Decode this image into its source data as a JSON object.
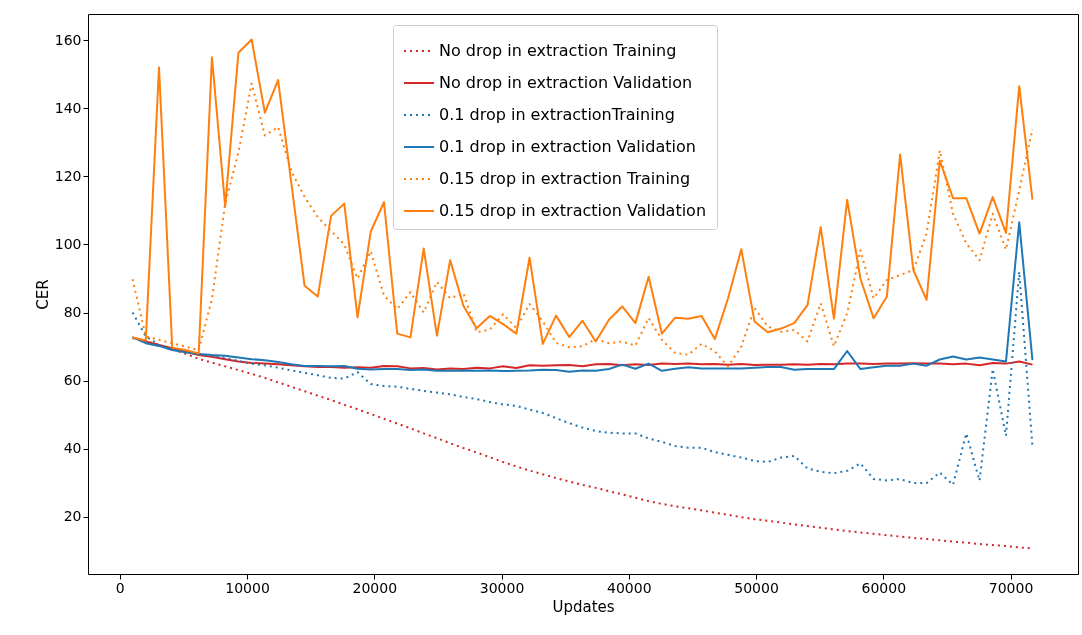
{
  "chart_data": {
    "type": "line",
    "xlabel": "Updates",
    "ylabel": "CER",
    "x": [
      1000,
      2040,
      3080,
      4120,
      5160,
      6200,
      7240,
      8280,
      9320,
      10360,
      11400,
      12440,
      13480,
      14520,
      15560,
      16600,
      17640,
      18680,
      19720,
      20760,
      21800,
      22840,
      23880,
      24920,
      25960,
      27000,
      28040,
      29080,
      30120,
      31160,
      32200,
      33240,
      34280,
      35320,
      36360,
      37400,
      38440,
      39480,
      40520,
      41560,
      42600,
      43640,
      44680,
      45720,
      46760,
      47800,
      48840,
      49880,
      50920,
      51960,
      53000,
      54040,
      55080,
      56120,
      57160,
      58200,
      59240,
      60280,
      61320,
      62360,
      63400,
      64440,
      65480,
      66520,
      67560,
      68600,
      69640,
      70680,
      71720
    ],
    "series": [
      {
        "name": "No drop in extraction Training",
        "color": "#d62728",
        "line_style": "dotted",
        "values": [
          72.5,
          71.6,
          70.5,
          69.2,
          67.9,
          66.4,
          65.3,
          64.2,
          63.1,
          62,
          60.8,
          59.5,
          58.2,
          56.9,
          55.6,
          54.3,
          52.9,
          51.6,
          50.2,
          48.8,
          47.4,
          46.0,
          44.5,
          43.1,
          41.6,
          40.2,
          38.9,
          37.5,
          36.1,
          34.8,
          33.6,
          32.5,
          31.4,
          30.4,
          29.4,
          28.5,
          27.5,
          26.6,
          25.6,
          24.6,
          23.8,
          23.1,
          22.5,
          21.9,
          21.2,
          20.6,
          19.9,
          19.3,
          18.8,
          18.3,
          17.8,
          17.3,
          16.8,
          16.3,
          15.8,
          15.4,
          15.0,
          14.6,
          14.2,
          13.8,
          13.5,
          13.1,
          12.7,
          12.4,
          12.0,
          11.7,
          11.4,
          11.0,
          10.7
        ]
      },
      {
        "name": "No drop in extraction Validation",
        "color": "#d62728",
        "line_style": "solid",
        "values": [
          72.7,
          71.5,
          70.5,
          69.5,
          68.5,
          67.5,
          67,
          66.3,
          65.6,
          65.2,
          65,
          64.8,
          64.5,
          64.2,
          64,
          64,
          63.8,
          63.9,
          63.8,
          64.3,
          64.2,
          63.6,
          63.7,
          63.3,
          63.6,
          63.4,
          63.8,
          63.6,
          64.2,
          63.7,
          64.5,
          64.4,
          64.5,
          64.6,
          64.2,
          64.8,
          64.9,
          64.5,
          64.8,
          64.6,
          65,
          64.9,
          65,
          64.8,
          64.9,
          64.7,
          64.9,
          64.6,
          64.7,
          64.7,
          64.8,
          64.7,
          64.9,
          64.8,
          65,
          65,
          64.9,
          65,
          65,
          65.1,
          65,
          65,
          64.8,
          65,
          64.5,
          65.2,
          65,
          65.6,
          64.7
        ]
      },
      {
        "name": "0.1 drop in extractionTraining",
        "color": "#1f77b4",
        "line_style": "dotted",
        "values": [
          80,
          73,
          70.5,
          69.2,
          68.5,
          67.8,
          67.3,
          66.7,
          65.8,
          65,
          64.5,
          63.8,
          63,
          62.3,
          61.6,
          60.8,
          60.6,
          62.5,
          59,
          58.4,
          58.2,
          57.6,
          57,
          56.5,
          56,
          55.2,
          54.6,
          53.7,
          53,
          52.6,
          51.5,
          50.5,
          49,
          47.5,
          46.2,
          45.2,
          44.7,
          44.5,
          44.5,
          43,
          42,
          40.8,
          40.3,
          40.3,
          39,
          38.2,
          37.4,
          36.4,
          36.1,
          37.4,
          37.9,
          34.2,
          33.2,
          32.8,
          33.5,
          35.7,
          31.1,
          30.7,
          31.1,
          29.9,
          29.9,
          33,
          29.4,
          44.5,
          30.6,
          63.4,
          43.8,
          92,
          40.6
        ]
      },
      {
        "name": "0.1 drop in extraction  Validation",
        "color": "#1f77b4",
        "line_style": "solid",
        "values": [
          72.7,
          71,
          70.2,
          69,
          68.3,
          67.8,
          67.5,
          67.3,
          66.8,
          66.3,
          66,
          65.5,
          64.8,
          64.3,
          64.3,
          64.2,
          64.3,
          63.5,
          63.3,
          63.4,
          63.4,
          63.1,
          63.3,
          62.9,
          62.9,
          63,
          62.9,
          63,
          62.8,
          62.9,
          63,
          63.2,
          63.1,
          62.6,
          63,
          62.9,
          63.4,
          64.7,
          63.5,
          65,
          62.9,
          63.5,
          63.9,
          63.6,
          63.6,
          63.6,
          63.6,
          63.8,
          64,
          64,
          63.2,
          63.4,
          63.4,
          63.4,
          68.7,
          63.4,
          63.9,
          64.4,
          64.4,
          65,
          64.4,
          66.2,
          67.1,
          66.2,
          66.8,
          66.2,
          65.6,
          106.5,
          66
        ]
      },
      {
        "name": "0.15 drop in extraction Training",
        "color": "#ff7f0e",
        "line_style": "dotted",
        "values": [
          89.8,
          73,
          72,
          71,
          70,
          69,
          84,
          112,
          127,
          147.3,
          132,
          134.5,
          121.5,
          114,
          108,
          104,
          100,
          90,
          98,
          85,
          81,
          86,
          80,
          89,
          84.2,
          85.7,
          74.2,
          75,
          79.5,
          75.4,
          82.5,
          77.4,
          71.1,
          69.8,
          70.1,
          72.2,
          71,
          71.5,
          70.3,
          78.4,
          72,
          68.1,
          67.6,
          70.8,
          68.6,
          64.2,
          70,
          81.3,
          75.9,
          74.4,
          74.9,
          71.5,
          82.7,
          70.1,
          79.8,
          98.3,
          84.2,
          89.6,
          91,
          92.5,
          103.2,
          127.6,
          109,
          100.3,
          95.4,
          109,
          98.5,
          115.9,
          133.9
        ]
      },
      {
        "name": "0.15 drop in extraction Validation",
        "color": "#ff7f0e",
        "line_style": "solid",
        "values": [
          72.7,
          71.8,
          152,
          69.7,
          69,
          68,
          155,
          111.2,
          156.3,
          160.2,
          138.7,
          148.3,
          118,
          87.9,
          84.7,
          108.4,
          112,
          78.6,
          103.8,
          112.4,
          73.8,
          72.7,
          98.8,
          73.2,
          95.4,
          82,
          75.4,
          79,
          76.6,
          73.8,
          96.1,
          70.8,
          79.1,
          72.8,
          77.6,
          71.5,
          77.9,
          81.8,
          76.9,
          90.5,
          73.8,
          78.5,
          78.2,
          79,
          72.2,
          84.2,
          98.6,
          77.4,
          74.2,
          75.3,
          76.9,
          82.2,
          105.1,
          78.2,
          113.1,
          90,
          78.3,
          84.7,
          126.4,
          92.5,
          83.7,
          124.6,
          113.6,
          113.6,
          103.2,
          113.9,
          103.4,
          146.5,
          113.2
        ]
      }
    ],
    "xlim": [
      -2500,
      75300
    ],
    "xticks": [
      0,
      10000,
      20000,
      30000,
      40000,
      50000,
      60000,
      70000
    ],
    "ylim": [
      3.2,
      167.7
    ],
    "yticks": [
      20,
      40,
      60,
      80,
      100,
      120,
      140,
      160
    ],
    "grid": false,
    "legend": "top"
  }
}
